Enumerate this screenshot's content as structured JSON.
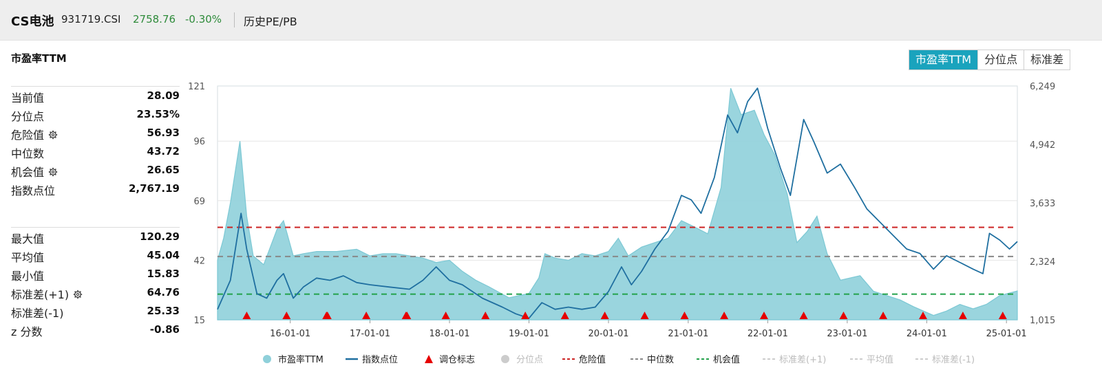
{
  "header": {
    "index_name": "CS电池",
    "index_code": "931719.CSI",
    "price": "2758.76",
    "change": "-0.30%",
    "page_title": "历史PE/PB"
  },
  "panel": {
    "title": "市盈率TTM",
    "tabs": [
      "市盈率TTM",
      "分位点",
      "标准差"
    ],
    "active_tab": 0
  },
  "stats_top": [
    {
      "label": "当前值",
      "value": "28.09",
      "gear": false
    },
    {
      "label": "分位点",
      "value": "23.53%",
      "gear": false
    },
    {
      "label": "危险值",
      "value": "56.93",
      "gear": true
    },
    {
      "label": "中位数",
      "value": "43.72",
      "gear": false
    },
    {
      "label": "机会值",
      "value": "26.65",
      "gear": true
    },
    {
      "label": "指数点位",
      "value": "2,767.19",
      "gear": false
    }
  ],
  "stats_bottom": [
    {
      "label": "最大值",
      "value": "120.29",
      "gear": false
    },
    {
      "label": "平均值",
      "value": "45.04",
      "gear": false
    },
    {
      "label": "最小值",
      "value": "15.83",
      "gear": false
    },
    {
      "label": "标准差(+1)",
      "value": "64.76",
      "gear": true
    },
    {
      "label": "标准差(-1)",
      "value": "25.33",
      "gear": false
    },
    {
      "label": "z 分数",
      "value": "-0.86",
      "gear": false
    }
  ],
  "colors": {
    "pe_fill": "#8fd0da",
    "pe_line": "#7cc8d4",
    "index_line": "#1f6fa0",
    "danger": "#cc2222",
    "median": "#888888",
    "opportunity": "#22a14a",
    "marker": "#e60000",
    "tab_active": "#1aa3bd",
    "price_up_down": "#2e8b3a"
  },
  "chart_data": {
    "type": "area",
    "x_ticks": [
      "16-01-01",
      "17-01-01",
      "18-01-01",
      "19-01-01",
      "20-01-01",
      "21-01-01",
      "22-01-01",
      "23-01-01",
      "24-01-01",
      "25-01-01"
    ],
    "x_range": [
      "2015-02-01",
      "2025-02-20"
    ],
    "y_left": {
      "ticks": [
        "15",
        "42",
        "69",
        "96",
        "121"
      ],
      "range": [
        15,
        121
      ]
    },
    "y_right": {
      "ticks": [
        "1,015",
        "2,324",
        "3,633",
        "4,942",
        "6,249"
      ],
      "range": [
        1015,
        6249
      ]
    },
    "grid": true,
    "legend_position": "bottom",
    "reference_lines": {
      "danger": 56.93,
      "median": 43.72,
      "opportunity": 26.65
    },
    "series": [
      {
        "name": "市盈率TTM",
        "axis": "left",
        "points": [
          [
            "2015-02-01",
            42
          ],
          [
            "2015-03-01",
            52
          ],
          [
            "2015-04-01",
            68
          ],
          [
            "2015-05-15",
            96
          ],
          [
            "2015-06-15",
            62
          ],
          [
            "2015-07-15",
            44
          ],
          [
            "2015-09-01",
            40
          ],
          [
            "2015-11-01",
            56
          ],
          [
            "2015-12-01",
            60
          ],
          [
            "2016-01-15",
            44
          ],
          [
            "2016-03-01",
            45
          ],
          [
            "2016-05-01",
            46
          ],
          [
            "2016-08-01",
            46
          ],
          [
            "2016-11-01",
            47
          ],
          [
            "2017-01-01",
            44
          ],
          [
            "2017-03-01",
            45
          ],
          [
            "2017-05-01",
            45
          ],
          [
            "2017-07-01",
            44
          ],
          [
            "2017-09-01",
            43
          ],
          [
            "2017-11-01",
            41
          ],
          [
            "2018-01-01",
            42
          ],
          [
            "2018-03-01",
            37
          ],
          [
            "2018-05-01",
            33
          ],
          [
            "2018-07-01",
            30
          ],
          [
            "2018-10-01",
            25
          ],
          [
            "2019-01-01",
            27
          ],
          [
            "2019-02-15",
            34
          ],
          [
            "2019-03-15",
            45
          ],
          [
            "2019-05-01",
            43
          ],
          [
            "2019-07-01",
            42
          ],
          [
            "2019-09-01",
            45
          ],
          [
            "2019-11-01",
            44
          ],
          [
            "2020-01-01",
            46
          ],
          [
            "2020-02-15",
            52
          ],
          [
            "2020-04-01",
            44
          ],
          [
            "2020-06-01",
            48
          ],
          [
            "2020-08-01",
            50
          ],
          [
            "2020-10-01",
            52
          ],
          [
            "2020-12-01",
            60
          ],
          [
            "2021-02-01",
            57
          ],
          [
            "2021-04-01",
            54
          ],
          [
            "2021-06-01",
            75
          ],
          [
            "2021-07-15",
            120
          ],
          [
            "2021-09-01",
            108
          ],
          [
            "2021-11-01",
            110
          ],
          [
            "2021-12-15",
            99
          ],
          [
            "2022-02-01",
            90
          ],
          [
            "2022-04-01",
            72
          ],
          [
            "2022-05-15",
            50
          ],
          [
            "2022-07-01",
            55
          ],
          [
            "2022-08-15",
            62
          ],
          [
            "2022-10-01",
            45
          ],
          [
            "2022-12-01",
            33
          ],
          [
            "2023-03-01",
            35
          ],
          [
            "2023-05-01",
            28
          ],
          [
            "2023-07-01",
            26
          ],
          [
            "2023-09-01",
            24
          ],
          [
            "2023-11-01",
            21
          ],
          [
            "2024-02-01",
            17
          ],
          [
            "2024-04-01",
            19
          ],
          [
            "2024-06-01",
            22
          ],
          [
            "2024-08-01",
            20
          ],
          [
            "2024-10-01",
            22
          ],
          [
            "2024-12-01",
            26
          ],
          [
            "2025-02-20",
            28.09
          ]
        ]
      },
      {
        "name": "指数点位",
        "axis": "right",
        "points": [
          [
            "2015-02-01",
            1250
          ],
          [
            "2015-04-01",
            1900
          ],
          [
            "2015-05-20",
            3400
          ],
          [
            "2015-06-15",
            2600
          ],
          [
            "2015-08-01",
            1600
          ],
          [
            "2015-09-15",
            1500
          ],
          [
            "2015-11-01",
            1900
          ],
          [
            "2015-12-01",
            2050
          ],
          [
            "2016-01-15",
            1500
          ],
          [
            "2016-03-01",
            1750
          ],
          [
            "2016-05-01",
            1950
          ],
          [
            "2016-07-01",
            1900
          ],
          [
            "2016-09-01",
            2000
          ],
          [
            "2016-11-01",
            1850
          ],
          [
            "2017-01-01",
            1800
          ],
          [
            "2017-04-01",
            1750
          ],
          [
            "2017-07-01",
            1700
          ],
          [
            "2017-09-01",
            1900
          ],
          [
            "2017-11-01",
            2200
          ],
          [
            "2018-01-01",
            1900
          ],
          [
            "2018-03-01",
            1800
          ],
          [
            "2018-06-01",
            1500
          ],
          [
            "2018-09-01",
            1300
          ],
          [
            "2018-11-01",
            1150
          ],
          [
            "2019-01-01",
            1050
          ],
          [
            "2019-03-01",
            1400
          ],
          [
            "2019-05-01",
            1250
          ],
          [
            "2019-07-01",
            1300
          ],
          [
            "2019-09-01",
            1250
          ],
          [
            "2019-11-01",
            1300
          ],
          [
            "2020-01-01",
            1650
          ],
          [
            "2020-03-01",
            2200
          ],
          [
            "2020-04-15",
            1800
          ],
          [
            "2020-06-01",
            2100
          ],
          [
            "2020-08-01",
            2600
          ],
          [
            "2020-10-01",
            3000
          ],
          [
            "2020-12-01",
            3800
          ],
          [
            "2021-01-15",
            3700
          ],
          [
            "2021-03-01",
            3400
          ],
          [
            "2021-05-01",
            4200
          ],
          [
            "2021-07-01",
            5600
          ],
          [
            "2021-08-15",
            5200
          ],
          [
            "2021-10-01",
            5900
          ],
          [
            "2021-11-15",
            6200
          ],
          [
            "2022-01-01",
            5300
          ],
          [
            "2022-03-01",
            4400
          ],
          [
            "2022-04-15",
            3800
          ],
          [
            "2022-06-15",
            5500
          ],
          [
            "2022-08-01",
            5000
          ],
          [
            "2022-10-01",
            4300
          ],
          [
            "2022-12-01",
            4500
          ],
          [
            "2023-02-01",
            4000
          ],
          [
            "2023-04-01",
            3500
          ],
          [
            "2023-06-01",
            3200
          ],
          [
            "2023-08-01",
            2900
          ],
          [
            "2023-10-01",
            2600
          ],
          [
            "2023-12-01",
            2500
          ],
          [
            "2024-02-01",
            2150
          ],
          [
            "2024-04-01",
            2450
          ],
          [
            "2024-06-01",
            2300
          ],
          [
            "2024-08-01",
            2150
          ],
          [
            "2024-09-15",
            2050
          ],
          [
            "2024-10-15",
            2950
          ],
          [
            "2024-12-01",
            2800
          ],
          [
            "2025-01-15",
            2600
          ],
          [
            "2025-02-20",
            2767.19
          ]
        ]
      },
      {
        "name": "调仓标志",
        "kind": "marker",
        "dates": [
          "2015-06-15",
          "2015-12-15",
          "2016-06-15",
          "2016-06-20",
          "2016-12-15",
          "2017-06-15",
          "2017-06-20",
          "2017-12-15",
          "2018-06-15",
          "2018-12-15",
          "2019-06-15",
          "2019-12-15",
          "2020-06-15",
          "2020-12-15",
          "2021-06-15",
          "2021-12-15",
          "2022-06-15",
          "2022-12-15",
          "2023-06-15",
          "2023-12-15",
          "2024-06-15",
          "2024-12-15"
        ]
      }
    ],
    "legend": [
      "市盈率TTM",
      "指数点位",
      "调仓标志",
      "分位点",
      "危险值",
      "中位数",
      "机会值",
      "标准差(+1)",
      "平均值",
      "标准差(-1)"
    ]
  }
}
